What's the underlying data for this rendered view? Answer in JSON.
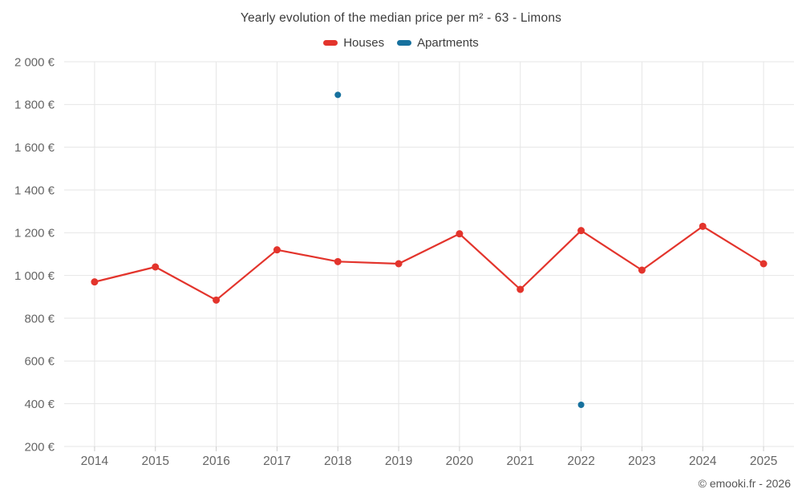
{
  "title": "Yearly evolution of the median price per m² - 63 - Limons",
  "footer": "© emooki.fr - 2026",
  "legend": [
    {
      "label": "Houses",
      "color": "#e3342c"
    },
    {
      "label": "Apartments",
      "color": "#17719e"
    }
  ],
  "colors": {
    "grid": "#e6e6e6",
    "tick": "#cccccc",
    "axis_text": "#666666"
  },
  "chart_data": {
    "type": "line",
    "title": "Yearly evolution of the median price per m² - 63 - Limons",
    "categories": [
      "2014",
      "2015",
      "2016",
      "2017",
      "2018",
      "2019",
      "2020",
      "2021",
      "2022",
      "2023",
      "2024",
      "2025"
    ],
    "series": [
      {
        "name": "Houses",
        "color": "#e3342c",
        "draw_line": true,
        "marker_radius": 4.5,
        "values": [
          970,
          1040,
          885,
          1120,
          1065,
          1055,
          1195,
          935,
          1210,
          1025,
          1230,
          1055
        ]
      },
      {
        "name": "Apartments",
        "color": "#17719e",
        "draw_line": false,
        "marker_radius": 4,
        "values": [
          null,
          null,
          null,
          null,
          1845,
          null,
          null,
          null,
          395,
          null,
          null,
          null
        ]
      }
    ],
    "xlabel": "",
    "ylabel": "",
    "ylim": [
      200,
      2000
    ],
    "y_tick_step": 200,
    "y_tick_labels": [
      "200 €",
      "400 €",
      "600 €",
      "800 €",
      "1 000 €",
      "1 200 €",
      "1 400 €",
      "1 600 €",
      "1 800 €",
      "2 000 €"
    ],
    "grid": true,
    "legend_position": "top"
  }
}
